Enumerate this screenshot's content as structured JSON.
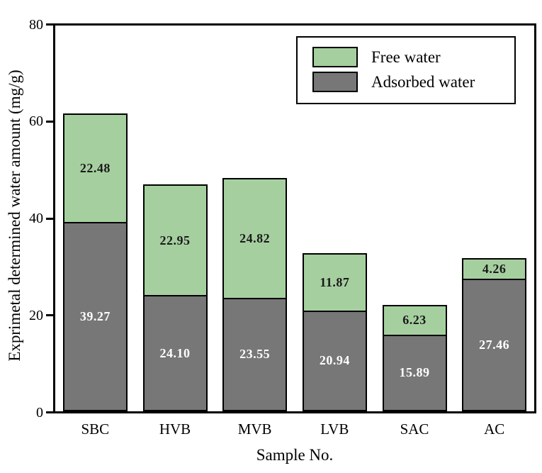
{
  "figure": {
    "background": "#ffffff",
    "axis_color": "#000000"
  },
  "chart_data": {
    "type": "bar",
    "stacked": true,
    "title": "",
    "xlabel": "Sample No.",
    "ylabel": "Exprimetal determined water amount (mg/g)",
    "ylim": [
      0,
      80
    ],
    "yticks": [
      0,
      20,
      40,
      60,
      80
    ],
    "grid": false,
    "bar_labels": true,
    "categories": [
      "SBC",
      "HVB",
      "MVB",
      "LVB",
      "SAC",
      "AC"
    ],
    "series": [
      {
        "name": "Adsorbed water",
        "color": "#777777",
        "label_color": "#ffffff",
        "values": [
          39.27,
          24.1,
          23.55,
          20.94,
          15.89,
          27.46
        ]
      },
      {
        "name": "Free water",
        "color": "#a6cfa0",
        "label_color": "#1a1a1a",
        "values": [
          22.48,
          22.95,
          24.82,
          11.87,
          6.23,
          4.26
        ]
      }
    ],
    "totals": [
      61.75,
      47.05,
      48.37,
      32.81,
      22.12,
      31.72
    ],
    "legend": {
      "position": "top-right",
      "entries": [
        {
          "label": "Free water",
          "color": "#a6cfa0"
        },
        {
          "label": "Adsorbed water",
          "color": "#777777"
        }
      ]
    }
  }
}
